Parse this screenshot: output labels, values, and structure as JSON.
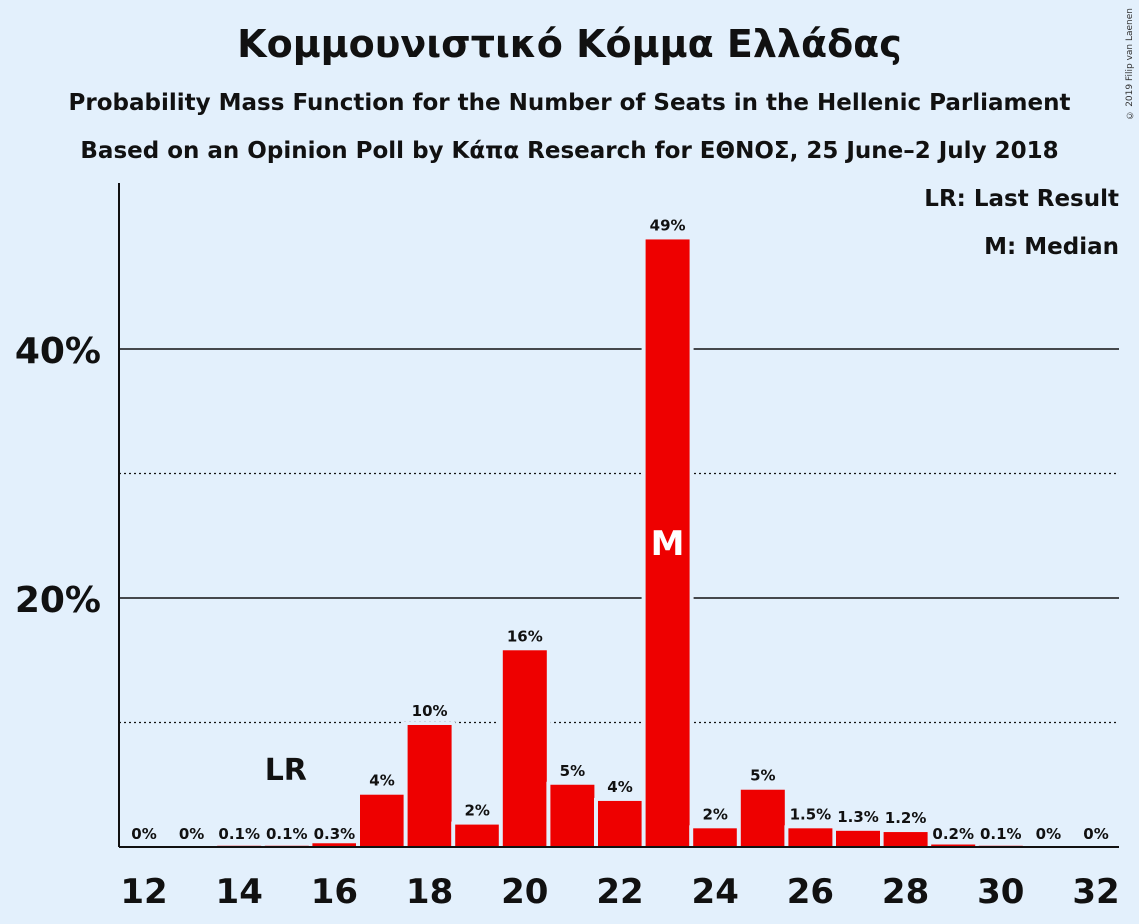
{
  "title": "Κομμουνιστικό Κόμμα Ελλάδας",
  "subtitle_line1": "Probability Mass Function for the Number of Seats in the Hellenic Parliament",
  "subtitle_line2": "Based on an Opinion Poll by Κάπα Research for ΕΘΝΟΣ, 25 June–2 July 2018",
  "copyright": "© 2019 Filip van Laenen",
  "legend": {
    "last_result": "LR: Last Result",
    "median": "M: Median"
  },
  "colors": {
    "background": "#e3f0fc",
    "bar": "#ee0000",
    "text": "#111111"
  },
  "chart_data": {
    "type": "bar",
    "x": [
      12,
      13,
      14,
      15,
      16,
      17,
      18,
      19,
      20,
      21,
      22,
      23,
      24,
      25,
      26,
      27,
      28,
      29,
      30,
      31,
      32
    ],
    "values": [
      0,
      0,
      0.1,
      0.1,
      0.3,
      4.2,
      9.8,
      1.8,
      15.8,
      5.0,
      3.7,
      48.8,
      1.5,
      4.6,
      1.5,
      1.3,
      1.2,
      0.2,
      0.1,
      0,
      0
    ],
    "data_labels": [
      "0%",
      "0%",
      "0.1%",
      "0.1%",
      "0.3%",
      "4%",
      "10%",
      "2%",
      "16%",
      "5%",
      "4%",
      "49%",
      "2%",
      "5%",
      "1.5%",
      "1.3%",
      "1.2%",
      "0.2%",
      "0.1%",
      "0%",
      "0%"
    ],
    "x_ticks": [
      "12",
      "14",
      "16",
      "18",
      "20",
      "22",
      "24",
      "26",
      "28",
      "30",
      "32"
    ],
    "y_ticks": [
      "20%",
      "40%"
    ],
    "ylim": [
      0,
      53
    ],
    "solid_gridlines": [
      20,
      40
    ],
    "dotted_gridlines": [
      10,
      30
    ],
    "last_result": {
      "seats": 15,
      "label": "LR"
    },
    "median": {
      "seats": 23,
      "label": "M"
    },
    "legend_position": "top-right"
  }
}
